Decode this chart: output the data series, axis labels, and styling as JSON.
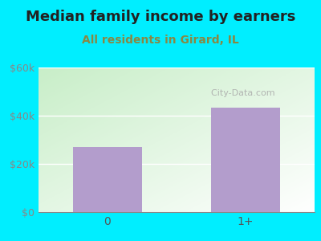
{
  "title": "Median family income by earners",
  "subtitle": "All residents in Girard, IL",
  "categories": [
    "0",
    "1+"
  ],
  "values": [
    27000,
    43500
  ],
  "bar_color": "#b39dcc",
  "title_fontsize": 13,
  "subtitle_fontsize": 10,
  "subtitle_color": "#888844",
  "title_color": "#222222",
  "ylim": [
    0,
    60000
  ],
  "yticks": [
    0,
    20000,
    40000,
    60000
  ],
  "ytick_labels": [
    "$0",
    "$20k",
    "$40k",
    "$60k"
  ],
  "bg_outer_color": "#00eeff",
  "watermark": "  City-Data.com"
}
